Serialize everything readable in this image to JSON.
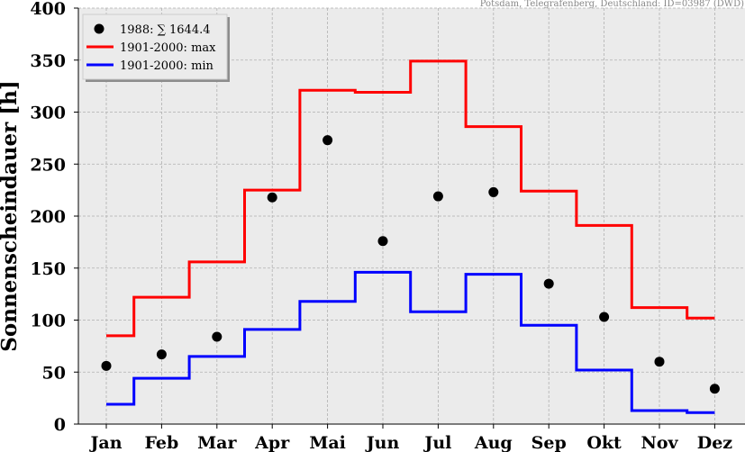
{
  "chart_data": {
    "type": "line",
    "title": "",
    "source": "Potsdam, Telegrafenberg, Deutschland: ID=03987 (DWD)",
    "xlabel": "",
    "ylabel": "Sonnenscheindauer [h]",
    "ylim": [
      0,
      400
    ],
    "yticks": [
      0,
      50,
      100,
      150,
      200,
      250,
      300,
      350,
      400
    ],
    "categories": [
      "Jan",
      "Feb",
      "Mar",
      "Apr",
      "Mai",
      "Jun",
      "Jul",
      "Aug",
      "Sep",
      "Okt",
      "Nov",
      "Dez"
    ],
    "grid": true,
    "legend_position": "top-left",
    "series": [
      {
        "name": "1988: ∑ 1644.4",
        "style": "scatter",
        "color": "#000000",
        "values": [
          56,
          67,
          84,
          218,
          273,
          176,
          219,
          223,
          135,
          103,
          60,
          34
        ]
      },
      {
        "name": "1901-2000: max",
        "style": "step",
        "color": "#ff0000",
        "values": [
          85,
          122,
          156,
          225,
          321,
          319,
          349,
          286,
          224,
          191,
          112,
          102
        ]
      },
      {
        "name": "1901-2000: min",
        "style": "step",
        "color": "#0000ff",
        "values": [
          19,
          44,
          65,
          91,
          118,
          146,
          108,
          144,
          95,
          52,
          13,
          11
        ]
      }
    ],
    "colors": {
      "plot_background": "#ebebeb",
      "grid": "#b0b0b0"
    }
  }
}
